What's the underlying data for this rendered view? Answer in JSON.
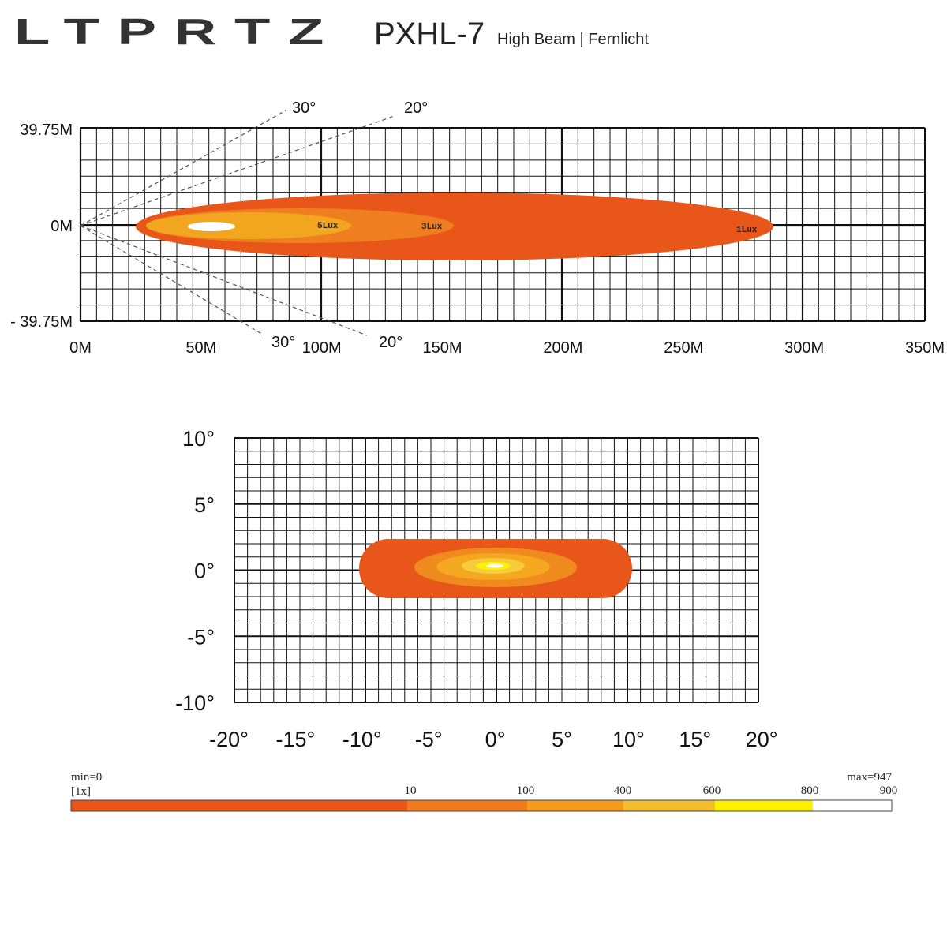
{
  "header": {
    "logo": "LTPRTZ",
    "model": "PXHL-7",
    "beam": "High Beam | Fernlicht"
  },
  "top_chart": {
    "y_labels": [
      "39.75M",
      "0M",
      "- 39.75M"
    ],
    "x_labels": [
      "0M",
      "50M",
      "100M",
      "150M",
      "200M",
      "250M",
      "300M",
      "350M"
    ],
    "angle_labels": [
      "30°",
      "20°",
      "30°",
      "20°"
    ],
    "lux_labels": [
      "5Lux",
      "3Lux",
      "1Lux"
    ]
  },
  "bottom_chart": {
    "y_labels": [
      "10°",
      "5°",
      "0°",
      "-5°",
      "-10°"
    ],
    "x_labels": [
      "-20°",
      "-15°",
      "-10°",
      "-5°",
      "0°",
      "5°",
      "10°",
      "15°",
      "20°"
    ]
  },
  "scale": {
    "min": "min=0",
    "unit": "[1x]",
    "max": "max=947",
    "ticks": [
      "10",
      "100",
      "400",
      "600",
      "800",
      "900"
    ]
  }
}
